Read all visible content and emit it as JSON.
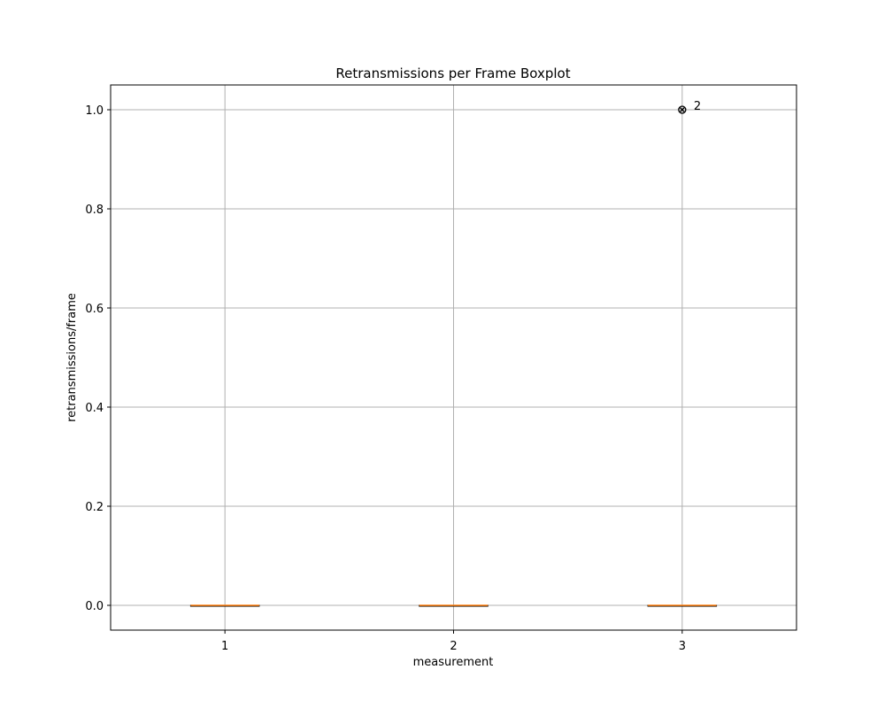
{
  "chart_data": {
    "type": "boxplot",
    "title": "Retransmissions per Frame Boxplot",
    "xlabel": "measurement",
    "ylabel": "retransmissions/frame",
    "categories": [
      "1",
      "2",
      "3"
    ],
    "yticks": [
      "0.0",
      "0.2",
      "0.4",
      "0.6",
      "0.8",
      "1.0"
    ],
    "ytick_values": [
      0.0,
      0.2,
      0.4,
      0.6,
      0.8,
      1.0
    ],
    "ylim": [
      -0.05,
      1.05
    ],
    "grid": true,
    "boxes": [
      {
        "category": "1",
        "min": 0,
        "q1": 0,
        "median": 0,
        "q3": 0,
        "max": 0
      },
      {
        "category": "2",
        "min": 0,
        "q1": 0,
        "median": 0,
        "q3": 0,
        "max": 0
      },
      {
        "category": "3",
        "min": 0,
        "q1": 0,
        "median": 0,
        "q3": 0,
        "max": 0
      }
    ],
    "outliers": [
      {
        "category": "3",
        "value": 1.0,
        "label": "2"
      }
    ],
    "colors": {
      "median": "#ff7f0e",
      "box": "#000000",
      "grid": "#b0b0b0"
    }
  }
}
